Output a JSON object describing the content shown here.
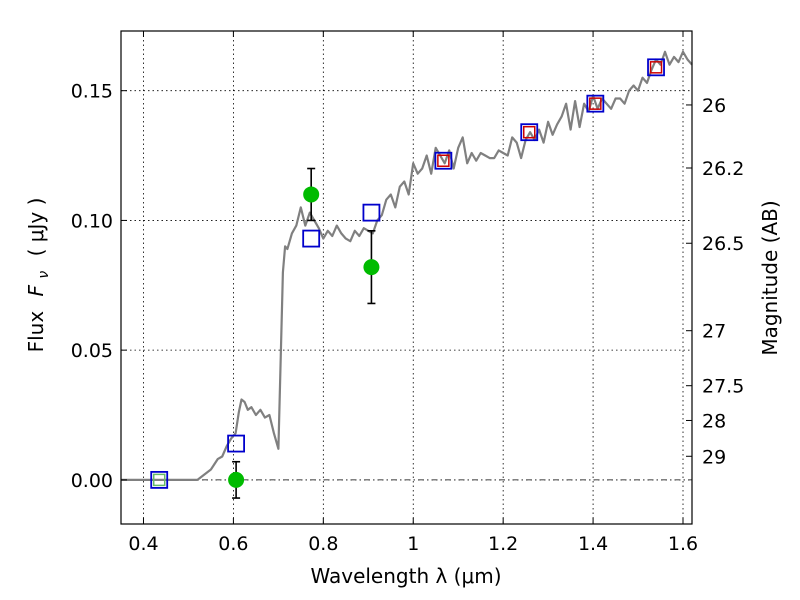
{
  "chart_data": {
    "type": "scatter",
    "xlabel": "Wavelength  λ (μm)",
    "ylabel_text": "Flux",
    "ylabel_math": "F",
    "ylabel_math_sub": "ν",
    "ylabel_unit": "( μJy )",
    "y2label": "Magnitude (AB)",
    "xlim": [
      0.35,
      1.62
    ],
    "ylim": [
      -0.017,
      0.173
    ],
    "grid": true,
    "x_ticks": [
      0.4,
      0.6,
      0.8,
      1.0,
      1.2,
      1.4,
      1.6
    ],
    "x_tick_labels": [
      "0.4",
      "0.6",
      "0.8",
      "1",
      "1.2",
      "1.4",
      "1.6"
    ],
    "y_ticks": [
      0.0,
      0.05,
      0.1,
      0.15
    ],
    "y_tick_labels": [
      "0.00",
      "0.05",
      "0.10",
      "0.15"
    ],
    "y2_ticks": [
      {
        "label": "26",
        "flux": 0.1445
      },
      {
        "label": "26.2",
        "flux": 0.1202
      },
      {
        "label": "26.5",
        "flux": 0.0912
      },
      {
        "label": "27",
        "flux": 0.0575
      },
      {
        "label": "27.5",
        "flux": 0.0363
      },
      {
        "label": "28",
        "flux": 0.0229
      },
      {
        "label": "29",
        "flux": 0.0091
      }
    ],
    "zero_line": true,
    "series": [
      {
        "kind": "line",
        "color": "#808080",
        "x": [
          0.35,
          0.45,
          0.52,
          0.55,
          0.565,
          0.575,
          0.585,
          0.595,
          0.605,
          0.612,
          0.618,
          0.625,
          0.632,
          0.64,
          0.65,
          0.66,
          0.67,
          0.68,
          0.69,
          0.7,
          0.71,
          0.715,
          0.72,
          0.73,
          0.74,
          0.75,
          0.76,
          0.77,
          0.78,
          0.79,
          0.8,
          0.81,
          0.82,
          0.83,
          0.84,
          0.85,
          0.86,
          0.87,
          0.88,
          0.89,
          0.9,
          0.91,
          0.92,
          0.93,
          0.94,
          0.95,
          0.96,
          0.97,
          0.98,
          0.99,
          1.0,
          1.01,
          1.02,
          1.03,
          1.04,
          1.05,
          1.06,
          1.07,
          1.08,
          1.09,
          1.1,
          1.11,
          1.12,
          1.13,
          1.14,
          1.15,
          1.16,
          1.17,
          1.18,
          1.19,
          1.2,
          1.21,
          1.22,
          1.23,
          1.24,
          1.25,
          1.26,
          1.27,
          1.28,
          1.29,
          1.3,
          1.31,
          1.32,
          1.33,
          1.34,
          1.35,
          1.36,
          1.37,
          1.38,
          1.39,
          1.4,
          1.41,
          1.42,
          1.43,
          1.44,
          1.45,
          1.46,
          1.47,
          1.48,
          1.49,
          1.5,
          1.51,
          1.52,
          1.53,
          1.54,
          1.55,
          1.56,
          1.57,
          1.58,
          1.59,
          1.6,
          1.61,
          1.62
        ],
        "y": [
          0.0,
          0.0,
          0.0,
          0.004,
          0.008,
          0.009,
          0.013,
          0.016,
          0.018,
          0.026,
          0.031,
          0.03,
          0.027,
          0.028,
          0.025,
          0.027,
          0.024,
          0.025,
          0.018,
          0.012,
          0.08,
          0.09,
          0.089,
          0.095,
          0.098,
          0.105,
          0.098,
          0.103,
          0.1,
          0.097,
          0.093,
          0.096,
          0.094,
          0.098,
          0.095,
          0.093,
          0.092,
          0.096,
          0.094,
          0.097,
          0.096,
          0.095,
          0.1,
          0.102,
          0.108,
          0.11,
          0.105,
          0.113,
          0.115,
          0.11,
          0.122,
          0.118,
          0.12,
          0.125,
          0.118,
          0.128,
          0.125,
          0.122,
          0.127,
          0.12,
          0.128,
          0.132,
          0.122,
          0.126,
          0.123,
          0.126,
          0.125,
          0.124,
          0.124,
          0.127,
          0.126,
          0.125,
          0.132,
          0.13,
          0.124,
          0.131,
          0.134,
          0.131,
          0.135,
          0.13,
          0.138,
          0.133,
          0.137,
          0.14,
          0.145,
          0.135,
          0.146,
          0.136,
          0.145,
          0.142,
          0.148,
          0.143,
          0.147,
          0.145,
          0.143,
          0.147,
          0.147,
          0.145,
          0.15,
          0.152,
          0.15,
          0.155,
          0.153,
          0.158,
          0.162,
          0.16,
          0.165,
          0.16,
          0.163,
          0.161,
          0.165,
          0.162,
          0.16
        ]
      },
      {
        "kind": "errorbar",
        "marker": "circle",
        "color": "#00bb00",
        "x": [
          0.606,
          0.773,
          0.907
        ],
        "y": [
          0.0,
          0.11,
          0.082
        ],
        "err": [
          0.007,
          0.01,
          0.014
        ]
      },
      {
        "kind": "marker",
        "marker": "square",
        "color": "#0000cc",
        "x": [
          0.435,
          0.606,
          0.773,
          0.907,
          1.067,
          1.258,
          1.405,
          1.54
        ],
        "y": [
          0.0,
          0.014,
          0.093,
          0.103,
          0.123,
          0.134,
          0.145,
          0.159
        ]
      },
      {
        "kind": "marker",
        "marker": "square-small",
        "color": "#cc0000",
        "x": [
          1.067,
          1.258,
          1.405,
          1.54
        ],
        "y": [
          0.123,
          0.134,
          0.145,
          0.159
        ]
      },
      {
        "kind": "marker",
        "marker": "square-small",
        "color": "#66bb66",
        "x": [
          0.435
        ],
        "y": [
          0.0
        ]
      }
    ]
  }
}
